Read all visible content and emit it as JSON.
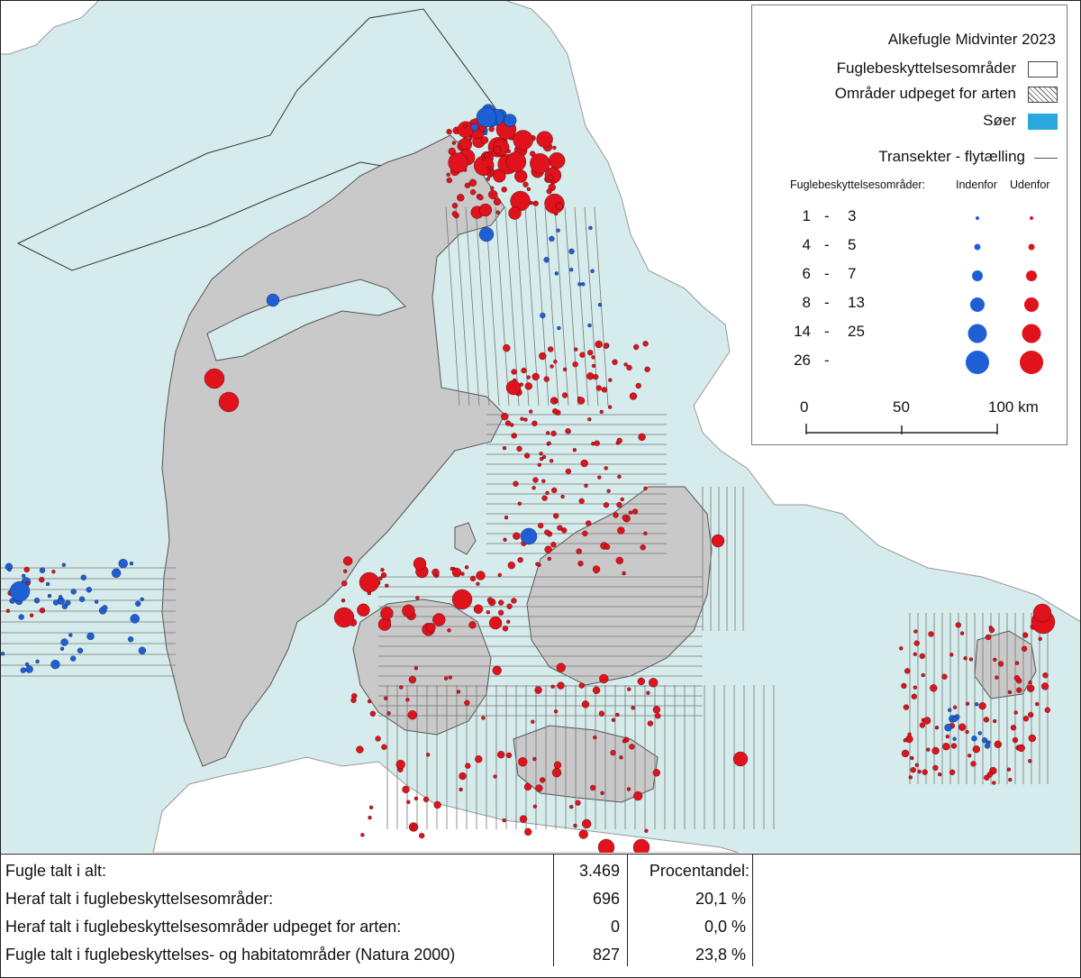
{
  "map": {
    "water_color": "#d6ebec",
    "land_color": "#c9c9c9",
    "foreign_land_color": "#ffffff",
    "inside_color": "#1f5fd6",
    "outside_color": "#e0121c",
    "lake_color": "#2ba8de"
  },
  "legend": {
    "title": "Alkefugle Midvinter 2023",
    "items": [
      {
        "label": "Fuglebeskyttelsesområder",
        "swatch": "white"
      },
      {
        "label": "Områder udpeget for arten",
        "swatch": "hatched"
      },
      {
        "label": "Søer",
        "swatch": "lake"
      }
    ],
    "transect_label": "Transekter - flytælling",
    "size_header": "Fuglebeskyttelsesområder:",
    "inside_label": "Indenfor",
    "outside_label": "Udenfor",
    "classes": [
      {
        "low": "1",
        "dash": "-",
        "high": "3"
      },
      {
        "low": "4",
        "dash": "-",
        "high": "5"
      },
      {
        "low": "6",
        "dash": "-",
        "high": "7"
      },
      {
        "low": "8",
        "dash": "-",
        "high": "13"
      },
      {
        "low": "14",
        "dash": "-",
        "high": "25"
      },
      {
        "low": "26",
        "dash": "-",
        "high": ""
      }
    ],
    "scale_labels": [
      "0",
      "50",
      "100 km"
    ]
  },
  "table": {
    "rows": [
      {
        "label": "Fugle talt i alt:",
        "count": "3.469",
        "pct": "Procentandel:"
      },
      {
        "label": "Heraf talt i fuglebeskyttelsesområder:",
        "count": "696",
        "pct": "20,1 %"
      },
      {
        "label": "Heraf talt i fuglebeskyttelsesområder udpeget for arten:",
        "count": "0",
        "pct": "0,0 %"
      },
      {
        "label": "Fugle talt i fuglebeskyttelses- og habitatområder (Natura 2000)",
        "count": "827",
        "pct": "23,8 %"
      }
    ]
  }
}
